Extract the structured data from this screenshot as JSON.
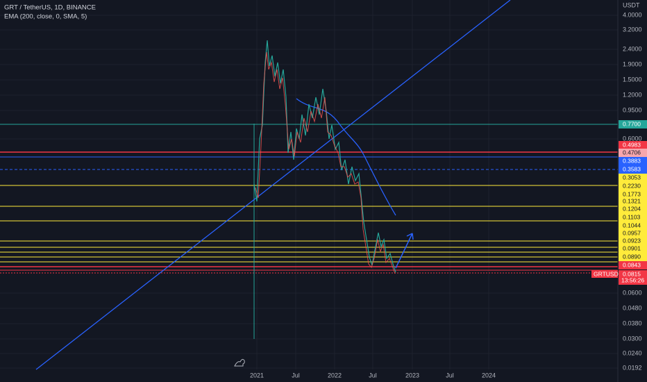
{
  "header": {
    "symbol": "GRT / TetherUS, 1D, BINANCE",
    "indicator": "EMA (200, close, 0, SMA, 5)"
  },
  "price_axis": {
    "unit": "USDT",
    "labels": [
      "4.0000",
      "3.2000",
      "2.4000",
      "1.9000",
      "1.5000",
      "1.2000",
      "0.9500",
      "0.6000",
      "0.0600",
      "0.0480",
      "0.0380",
      "0.0300",
      "0.0240",
      "0.0192"
    ]
  },
  "price_tags": [
    "0.7700",
    "0.4983",
    "0.4706",
    "0.3883",
    "0.3583",
    "0.3053",
    "0.2230",
    "0.1773",
    "0.1321",
    "0.1204",
    "0.1103",
    "0.1044",
    "0.0957",
    "0.0923",
    "0.0901",
    "0.0890",
    "0.0843"
  ],
  "symbol_tag": {
    "name": "GRTUSDT",
    "price": "0.0815",
    "countdown": "13:56:26"
  },
  "time_axis": [
    "2021",
    "Jul",
    "2022",
    "Jul",
    "2023",
    "Jul",
    "2024"
  ]
}
